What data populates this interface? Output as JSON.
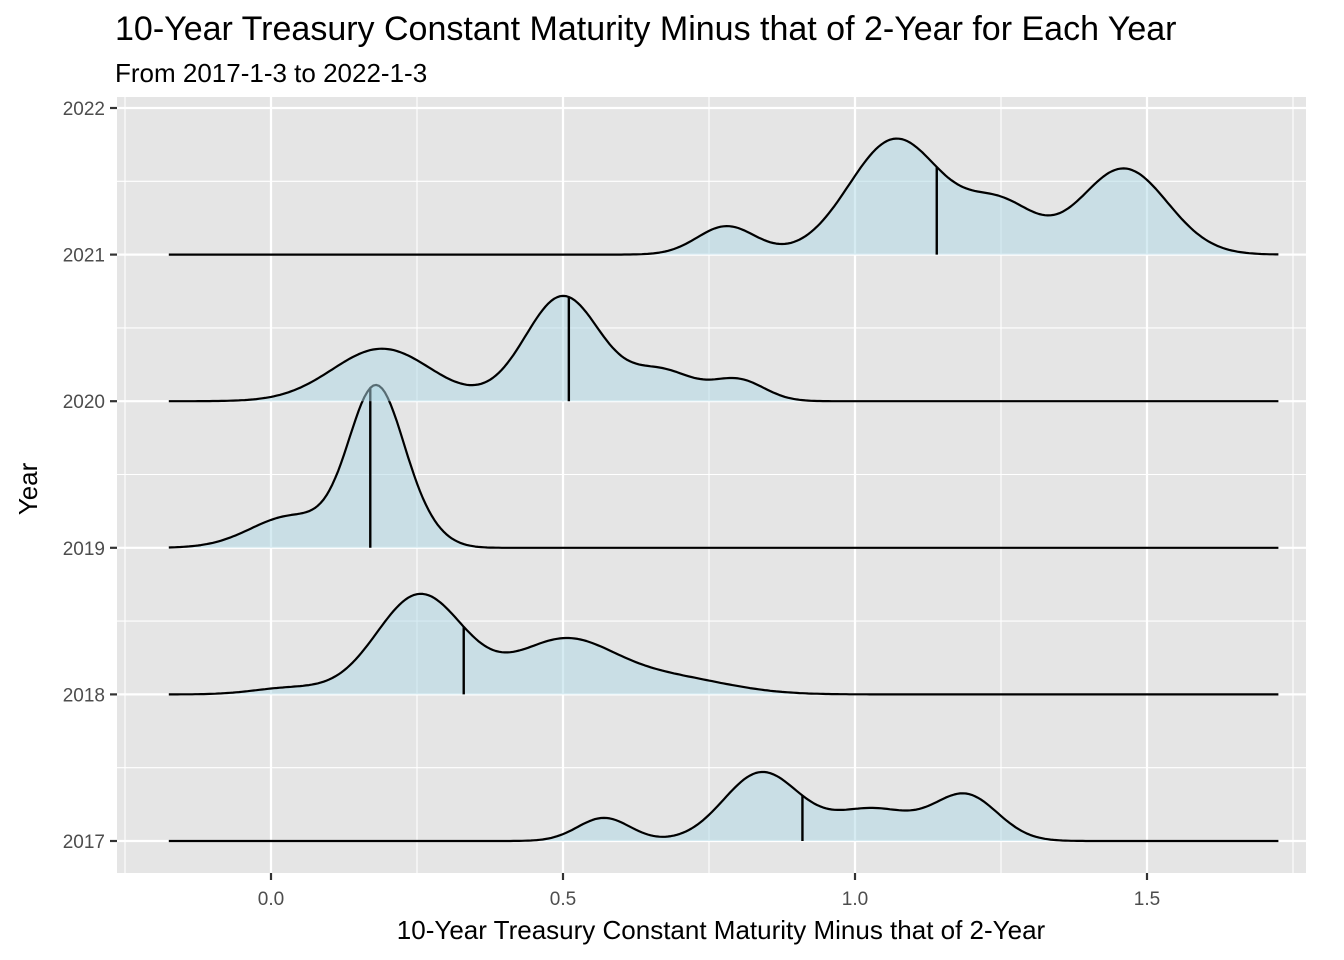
{
  "chart_data": {
    "type": "ridgeline",
    "title": "10-Year Treasury Constant Maturity Minus that of 2-Year for Each Year",
    "subtitle": "From 2017-1-3 to 2022-1-3",
    "xlabel": "10-Year Treasury Constant Maturity Minus that of 2-Year",
    "ylabel": "Year",
    "xlim": [
      -0.27,
      1.75
    ],
    "x_ticks": [
      "0.0",
      "0.5",
      "1.0",
      "1.5"
    ],
    "x_tick_values": [
      0.0,
      0.5,
      1.0,
      1.5
    ],
    "y_ticks": [
      "2017",
      "2018",
      "2019",
      "2020",
      "2021",
      "2022"
    ],
    "y_tick_values": [
      2017,
      2018,
      2019,
      2020,
      2021,
      2022
    ],
    "density_range": [
      -0.175,
      1.725
    ],
    "fill_color": "#add8e6",
    "series": [
      {
        "name": "2017",
        "median": 0.91,
        "components": [
          [
            0.57,
            0.045,
            0.22
          ],
          [
            0.84,
            0.065,
            0.65
          ],
          [
            1.03,
            0.07,
            0.3
          ],
          [
            1.19,
            0.055,
            0.43
          ]
        ]
      },
      {
        "name": "2018",
        "median": 0.33,
        "components": [
          [
            0.255,
            0.075,
            0.95
          ],
          [
            0.5,
            0.085,
            0.5
          ],
          [
            0.68,
            0.1,
            0.16
          ],
          [
            0.03,
            0.06,
            0.06
          ]
        ]
      },
      {
        "name": "2019",
        "median": 0.17,
        "components": [
          [
            0.18,
            0.047,
            1.5
          ],
          [
            0.035,
            0.07,
            0.3
          ],
          [
            0.26,
            0.04,
            0.12
          ]
        ]
      },
      {
        "name": "2020",
        "median": 0.51,
        "components": [
          [
            0.5,
            0.065,
            1.0
          ],
          [
            0.19,
            0.085,
            0.5
          ],
          [
            0.67,
            0.055,
            0.28
          ],
          [
            0.8,
            0.045,
            0.2
          ]
        ]
      },
      {
        "name": "2021",
        "median": 1.14,
        "components": [
          [
            0.78,
            0.05,
            0.27
          ],
          [
            1.07,
            0.08,
            1.1
          ],
          [
            1.25,
            0.06,
            0.45
          ],
          [
            1.46,
            0.075,
            0.82
          ]
        ]
      }
    ]
  }
}
